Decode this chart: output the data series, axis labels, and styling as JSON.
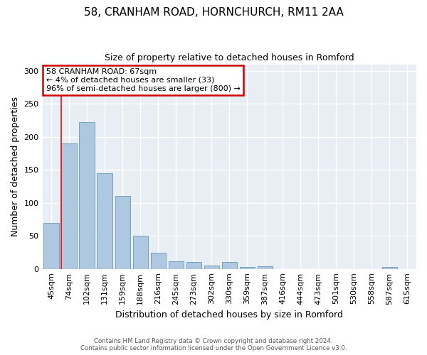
{
  "title1": "58, CRANHAM ROAD, HORNCHURCH, RM11 2AA",
  "title2": "Size of property relative to detached houses in Romford",
  "xlabel": "Distribution of detached houses by size in Romford",
  "ylabel": "Number of detached properties",
  "categories": [
    "45sqm",
    "74sqm",
    "102sqm",
    "131sqm",
    "159sqm",
    "188sqm",
    "216sqm",
    "245sqm",
    "273sqm",
    "302sqm",
    "330sqm",
    "359sqm",
    "387sqm",
    "416sqm",
    "444sqm",
    "473sqm",
    "501sqm",
    "530sqm",
    "558sqm",
    "587sqm",
    "615sqm"
  ],
  "values": [
    70,
    190,
    222,
    145,
    111,
    50,
    24,
    11,
    10,
    5,
    10,
    3,
    4,
    0,
    0,
    0,
    0,
    0,
    0,
    3,
    0
  ],
  "bar_color": "#adc8e0",
  "bar_edge_color": "#6699bb",
  "annotation_text": "58 CRANHAM ROAD: 67sqm\n← 4% of detached houses are smaller (33)\n96% of semi-detached houses are larger (800) →",
  "annotation_box_color": "#ffffff",
  "annotation_box_edge_color": "#cc0000",
  "red_line_x": 0.55,
  "ylim": [
    0,
    310
  ],
  "yticks": [
    0,
    50,
    100,
    150,
    200,
    250,
    300
  ],
  "footer1": "Contains HM Land Registry data © Crown copyright and database right 2024.",
  "footer2": "Contains public sector information licensed under the Open Government Licence v3.0.",
  "background_color": "#e8eef4",
  "title1_fontsize": 11,
  "title2_fontsize": 9,
  "ylabel_fontsize": 9,
  "xlabel_fontsize": 9,
  "tick_fontsize": 8,
  "annot_fontsize": 8
}
